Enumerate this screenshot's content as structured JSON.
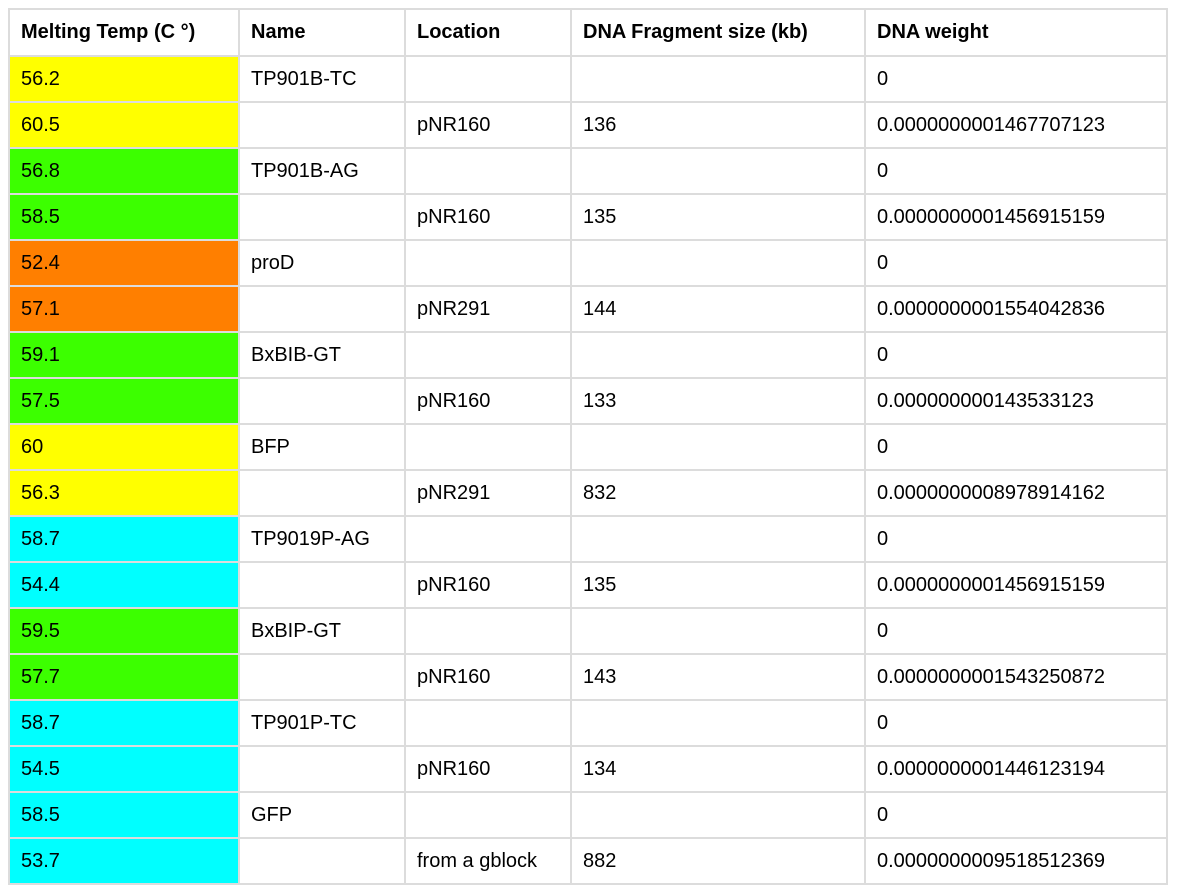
{
  "colors": {
    "yellow": "#ffff00",
    "green": "#3cff00",
    "orange": "#ff7f00",
    "cyan": "#00ffff",
    "border": "#dcdcdc"
  },
  "table": {
    "headers": [
      "Melting Temp (C °)",
      "Name",
      "Location",
      "DNA Fragment size (kb)",
      "DNA weight"
    ],
    "rows": [
      {
        "temp": "56.2",
        "color": "yellow",
        "name": "TP901B-TC",
        "location": "",
        "size": "",
        "weight": "0"
      },
      {
        "temp": "60.5",
        "color": "yellow",
        "name": "",
        "location": "pNR160",
        "size": "136",
        "weight": "0.0000000001467707123"
      },
      {
        "temp": "56.8",
        "color": "green",
        "name": "TP901B-AG",
        "location": "",
        "size": "",
        "weight": "0"
      },
      {
        "temp": "58.5",
        "color": "green",
        "name": "",
        "location": "pNR160",
        "size": "135",
        "weight": "0.0000000001456915159"
      },
      {
        "temp": "52.4",
        "color": "orange",
        "name": "proD",
        "location": "",
        "size": "",
        "weight": "0"
      },
      {
        "temp": "57.1",
        "color": "orange",
        "name": "",
        "location": "pNR291",
        "size": "144",
        "weight": "0.0000000001554042836"
      },
      {
        "temp": "59.1",
        "color": "green",
        "name": "BxBIB-GT",
        "location": "",
        "size": "",
        "weight": "0"
      },
      {
        "temp": "57.5",
        "color": "green",
        "name": "",
        "location": "pNR160",
        "size": "133",
        "weight": "0.000000000143533123"
      },
      {
        "temp": "60",
        "color": "yellow",
        "name": "BFP",
        "location": "",
        "size": "",
        "weight": "0"
      },
      {
        "temp": "56.3",
        "color": "yellow",
        "name": "",
        "location": "pNR291",
        "size": "832",
        "weight": "0.0000000008978914162"
      },
      {
        "temp": "58.7",
        "color": "cyan",
        "name": "TP9019P-AG",
        "location": "",
        "size": "",
        "weight": "0"
      },
      {
        "temp": "54.4",
        "color": "cyan",
        "name": "",
        "location": "pNR160",
        "size": "135",
        "weight": "0.0000000001456915159"
      },
      {
        "temp": "59.5",
        "color": "green",
        "name": "BxBIP-GT",
        "location": "",
        "size": "",
        "weight": "0"
      },
      {
        "temp": "57.7",
        "color": "green",
        "name": "",
        "location": "pNR160",
        "size": "143",
        "weight": "0.0000000001543250872"
      },
      {
        "temp": "58.7",
        "color": "cyan",
        "name": "TP901P-TC",
        "location": "",
        "size": "",
        "weight": "0"
      },
      {
        "temp": "54.5",
        "color": "cyan",
        "name": "",
        "location": "pNR160",
        "size": "134",
        "weight": "0.0000000001446123194"
      },
      {
        "temp": "58.5",
        "color": "cyan",
        "name": "GFP",
        "location": "",
        "size": "",
        "weight": "0"
      },
      {
        "temp": "53.7",
        "color": "cyan",
        "name": "",
        "location": "from a gblock",
        "size": "882",
        "weight": "0.0000000009518512369"
      }
    ]
  }
}
